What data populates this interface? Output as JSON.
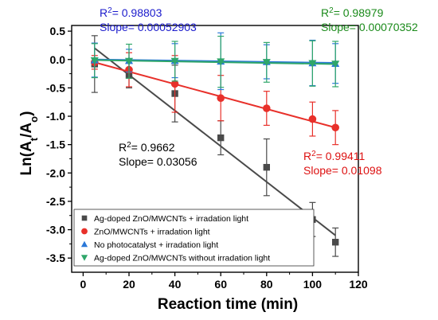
{
  "chart_data": {
    "type": "scatter",
    "title": "",
    "xlabel": "Reaction time (min)",
    "ylabel": {
      "main": "Ln(A",
      "sub1": "t",
      "mid": "/A",
      "sub2": "o",
      "end": ")"
    },
    "xlim": [
      -5,
      120
    ],
    "ylim": [
      -3.75,
      0.6
    ],
    "xticks": [
      0,
      20,
      40,
      60,
      80,
      100,
      120
    ],
    "yticks": [
      0.5,
      0.0,
      -0.5,
      -1.0,
      -1.5,
      -2.0,
      -2.5,
      -3.0,
      -3.5
    ],
    "xtick_labels": [
      "0",
      "20",
      "40",
      "60",
      "80",
      "100",
      "120"
    ],
    "ytick_labels": [
      "0.5",
      "0.0",
      "-0.5",
      "-1.0",
      "-1.5",
      "-2.0",
      "-2.5",
      "-3.0",
      "-3.5"
    ],
    "x": [
      5,
      20,
      40,
      60,
      80,
      100,
      110
    ],
    "legend_position": "bottom-left",
    "grid": false,
    "series": [
      {
        "name": "Ag-doped ZnO/MWCNTs + irradation light",
        "color": "#4a4a4a",
        "marker": "square",
        "values": [
          -0.08,
          -0.28,
          -0.6,
          -1.38,
          -1.9,
          -2.82,
          -3.22
        ],
        "errors": [
          0.5,
          0.22,
          0.5,
          0.3,
          0.5,
          0.3,
          0.25
        ],
        "fit": {
          "x": [
            5,
            110
          ],
          "y": [
            0.2,
            -3.1
          ]
        }
      },
      {
        "name": "ZnO/MWCNTs + irradation light",
        "color": "#e8302a",
        "marker": "circle",
        "values": [
          -0.05,
          -0.18,
          -0.43,
          -0.68,
          -0.86,
          -1.05,
          -1.2
        ],
        "errors": [
          0.12,
          0.3,
          0.5,
          0.4,
          0.3,
          0.3,
          0.3
        ],
        "fit": {
          "x": [
            5,
            110
          ],
          "y": [
            -0.05,
            -1.2
          ]
        }
      },
      {
        "name": "No photocatalyst + irradation light",
        "color": "#2a78d8",
        "marker": "triangle-up",
        "values": [
          -0.01,
          -0.02,
          -0.02,
          -0.03,
          -0.04,
          -0.06,
          -0.07
        ],
        "errors": [
          0.3,
          0.2,
          0.3,
          0.5,
          0.3,
          0.4,
          0.35
        ],
        "fit": {
          "x": [
            5,
            110
          ],
          "y": [
            0.0,
            -0.06
          ]
        }
      },
      {
        "name": "Ag-doped ZnO/MWCNTs without irradation light",
        "color": "#2fa66a",
        "marker": "triangle-down",
        "values": [
          -0.02,
          -0.03,
          -0.03,
          -0.04,
          -0.05,
          -0.07,
          -0.08
        ],
        "errors": [
          0.3,
          0.3,
          0.35,
          0.45,
          0.35,
          0.4,
          0.4
        ],
        "fit": {
          "x": [
            5,
            110
          ],
          "y": [
            -0.01,
            -0.08
          ]
        }
      }
    ],
    "annotations": [
      {
        "r2_prefix": "R",
        "r2_sup": "2",
        "r2_value": "= 0.98803",
        "slope": "Slope= 0.00052903",
        "color": "#1a1acc",
        "anchor": "top-left"
      },
      {
        "r2_prefix": "R",
        "r2_sup": "2",
        "r2_value": "= 0.98979",
        "slope": "Slope= 0.00070352",
        "color": "#1a8a1a",
        "anchor": "top-right"
      },
      {
        "r2_prefix": "R",
        "r2_sup": "2",
        "r2_value": "= 0.9662",
        "slope": "Slope= 0.03056",
        "color": "#000000",
        "anchor": "middle-left"
      },
      {
        "r2_prefix": "R",
        "r2_sup": "2",
        "r2_value": "= 0.99411",
        "slope": "Slope= 0.01098",
        "color": "#dd1111",
        "anchor": "middle-right"
      }
    ]
  }
}
